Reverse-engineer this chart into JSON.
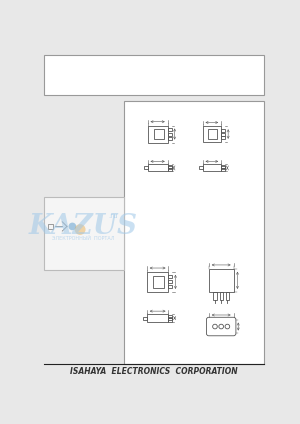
{
  "bg_color": "#e8e8e8",
  "panel_bg": "#ffffff",
  "panel_border": "#999999",
  "header_bg": "#ffffff",
  "header_border": "#999999",
  "drawing_color": "#555555",
  "watermark_text": "KAZUS",
  "watermark_sub": "ЭЛЕКТРОННЫЙ  ПОРТАЛ",
  "watermark_color": "#a0c8e8",
  "watermark_alpha": 0.55,
  "footer_text": "ISAHAYA  ELECTRONICS  CORPORATION",
  "footer_color": "#333333",
  "footer_fontsize": 5.5,
  "fig_width": 3.0,
  "fig_height": 4.24,
  "dpi": 100
}
